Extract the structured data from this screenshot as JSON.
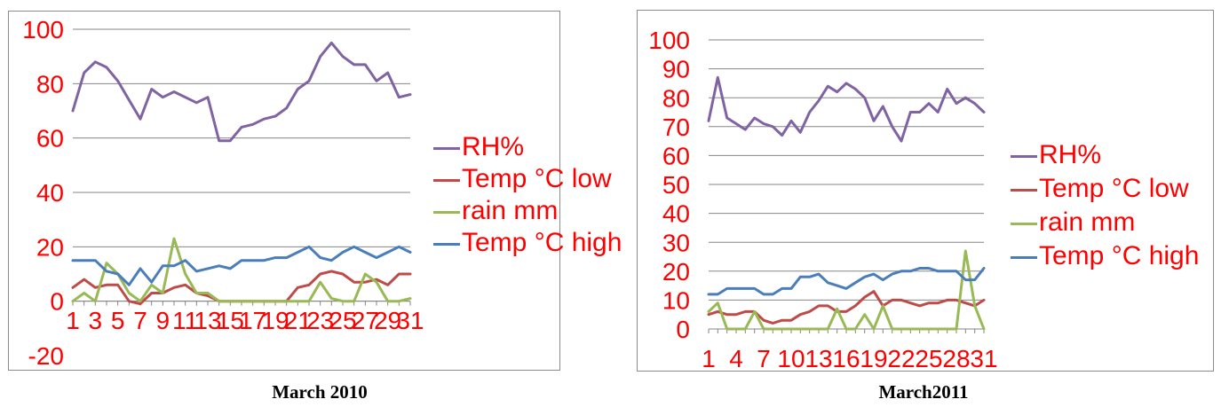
{
  "chart_data": [
    {
      "type": "line",
      "caption": "March 2010",
      "x": [
        1,
        2,
        3,
        4,
        5,
        6,
        7,
        8,
        9,
        10,
        11,
        12,
        13,
        14,
        15,
        16,
        17,
        18,
        19,
        20,
        21,
        22,
        23,
        24,
        25,
        26,
        27,
        28,
        29,
        30,
        31
      ],
      "xticks": [
        1,
        3,
        5,
        7,
        9,
        11,
        13,
        15,
        17,
        19,
        21,
        23,
        25,
        27,
        29,
        31
      ],
      "ylim": [
        -20,
        100
      ],
      "yticks": [
        -20,
        0,
        20,
        40,
        60,
        80,
        100
      ],
      "grid": true,
      "legend_position": "right",
      "series": [
        {
          "name": "RH%",
          "color": "#7f63a2",
          "values": [
            70,
            84,
            88,
            86,
            81,
            74,
            67,
            78,
            75,
            77,
            75,
            73,
            75,
            59,
            59,
            64,
            65,
            67,
            68,
            71,
            78,
            81,
            90,
            95,
            90,
            87,
            87,
            81,
            84,
            75,
            76
          ]
        },
        {
          "name": "Temp °C low",
          "color": "#be4b48",
          "values": [
            5,
            8,
            5,
            6,
            6,
            0,
            -1,
            3,
            3,
            5,
            6,
            3,
            2,
            0,
            0,
            0,
            0,
            0,
            0,
            0,
            5,
            6,
            10,
            11,
            10,
            7,
            7,
            8,
            6,
            10,
            10
          ]
        },
        {
          "name": "rain mm",
          "color": "#98b954",
          "values": [
            0,
            3,
            0,
            14,
            10,
            3,
            0,
            6,
            3,
            23,
            10,
            3,
            3,
            0,
            0,
            0,
            0,
            0,
            0,
            0,
            0,
            0,
            7,
            1,
            0,
            0,
            10,
            7,
            0,
            0,
            1
          ]
        },
        {
          "name": "Temp °C high",
          "color": "#4a7ebb",
          "values": [
            15,
            15,
            15,
            11,
            10,
            6,
            12,
            7,
            13,
            13,
            15,
            11,
            12,
            13,
            12,
            15,
            15,
            15,
            16,
            16,
            18,
            20,
            16,
            15,
            18,
            20,
            18,
            16,
            18,
            20,
            18
          ]
        }
      ]
    },
    {
      "type": "line",
      "caption": "March2011",
      "x": [
        1,
        2,
        3,
        4,
        5,
        6,
        7,
        8,
        9,
        10,
        11,
        12,
        13,
        14,
        15,
        16,
        17,
        18,
        19,
        20,
        21,
        22,
        23,
        24,
        25,
        26,
        27,
        28,
        29,
        30,
        31
      ],
      "xticks": [
        1,
        4,
        7,
        10,
        13,
        16,
        19,
        22,
        25,
        28,
        31
      ],
      "ylim": [
        0,
        100
      ],
      "yticks": [
        0,
        10,
        20,
        30,
        40,
        50,
        60,
        70,
        80,
        90,
        100
      ],
      "grid": true,
      "legend_position": "right",
      "series": [
        {
          "name": "RH%",
          "color": "#7f63a2",
          "values": [
            72,
            87,
            73,
            71,
            69,
            73,
            71,
            70,
            67,
            72,
            68,
            75,
            79,
            84,
            82,
            85,
            83,
            80,
            72,
            77,
            70,
            65,
            75,
            75,
            78,
            75,
            83,
            78,
            80,
            78,
            75
          ]
        },
        {
          "name": "Temp °C low",
          "color": "#be4b48",
          "values": [
            5,
            6,
            5,
            5,
            6,
            6,
            3,
            2,
            3,
            3,
            5,
            6,
            8,
            8,
            6,
            6,
            8,
            11,
            13,
            8,
            10,
            10,
            9,
            8,
            9,
            9,
            10,
            10,
            9,
            8,
            10
          ]
        },
        {
          "name": "rain mm",
          "color": "#98b954",
          "values": [
            6,
            9,
            0,
            0,
            0,
            6,
            0,
            0,
            0,
            0,
            0,
            0,
            0,
            0,
            7,
            0,
            0,
            5,
            0,
            8,
            0,
            0,
            0,
            0,
            0,
            0,
            0,
            0,
            27,
            8,
            0
          ]
        },
        {
          "name": "Temp °C high",
          "color": "#4a7ebb",
          "values": [
            12,
            12,
            14,
            14,
            14,
            14,
            12,
            12,
            14,
            14,
            18,
            18,
            19,
            16,
            15,
            14,
            16,
            18,
            19,
            17,
            19,
            20,
            20,
            21,
            21,
            20,
            20,
            20,
            17,
            17,
            21
          ]
        }
      ]
    }
  ]
}
